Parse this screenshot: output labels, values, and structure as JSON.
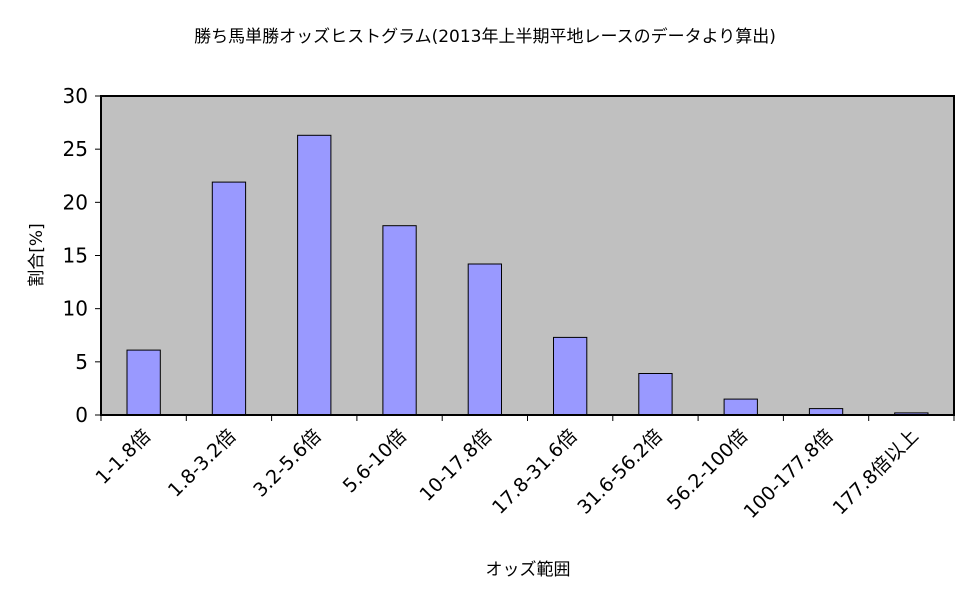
{
  "chart_data": {
    "type": "bar",
    "title": "勝ち馬単勝オッズヒストグラム(2013年上半期平地レースのデータより算出)",
    "xlabel": "オッズ範囲",
    "ylabel": "割合[%]",
    "categories": [
      "1-1.8倍",
      "1.8-3.2倍",
      "3.2-5.6倍",
      "5.6-10倍",
      "10-17.8倍",
      "17.8-31.6倍",
      "31.6-56.2倍",
      "56.2-100倍",
      "100-177.8倍",
      "177.8倍以上"
    ],
    "values": [
      6.1,
      21.9,
      26.3,
      17.8,
      14.2,
      7.3,
      3.9,
      1.5,
      0.6,
      0.2
    ],
    "ylim": [
      0,
      30
    ],
    "yticks": [
      "0",
      "5",
      "10",
      "15",
      "20",
      "25",
      "30"
    ],
    "grid": false,
    "legend": "none",
    "colors": {
      "bar": "#9999ff",
      "plot_background": "#c0c0c0",
      "stroke": "#000000"
    }
  }
}
